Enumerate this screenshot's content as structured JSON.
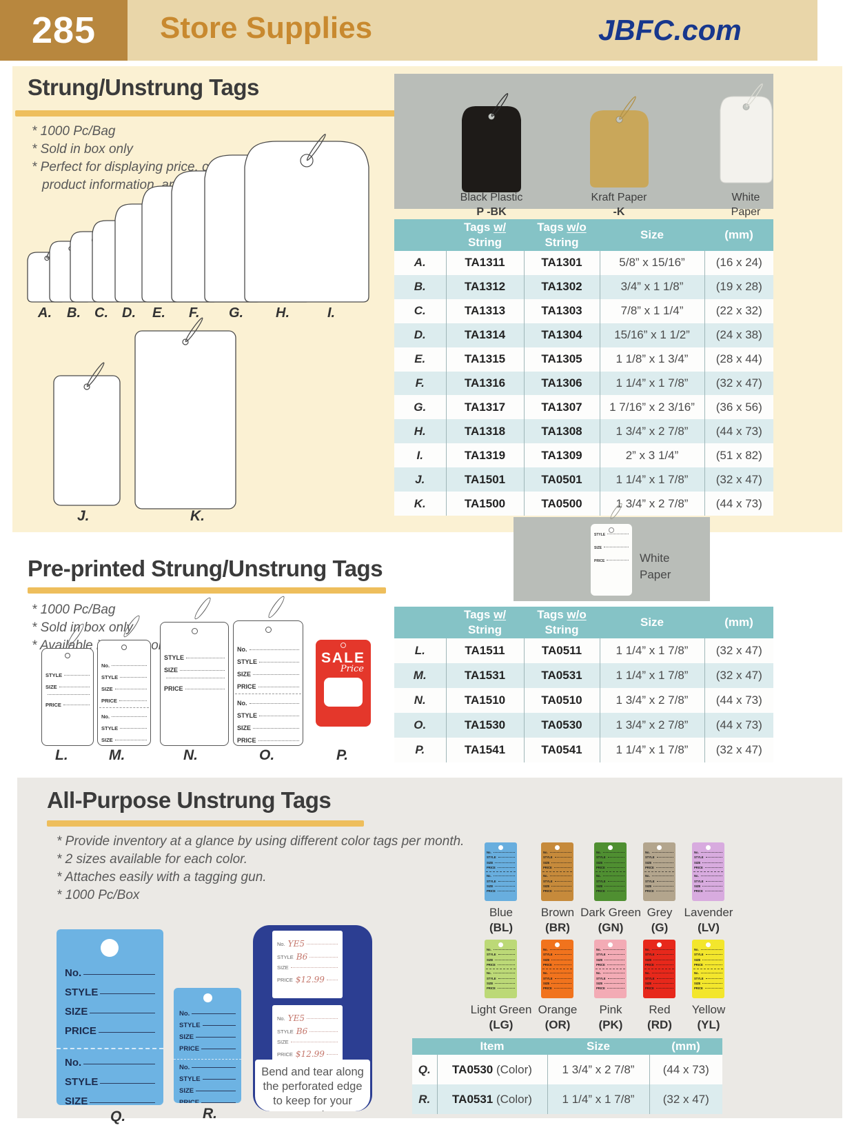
{
  "header": {
    "page_number": "285",
    "title": "Store Supplies",
    "website": "JBFC.com"
  },
  "strung": {
    "title": "Strung/Unstrung Tags",
    "bullets": [
      "* 1000 Pc/Bag",
      "* Sold in box only",
      "* Perfect for displaying price, codes, product information, and more."
    ],
    "fan_letters": [
      "A.",
      "B.",
      "C.",
      "D.",
      "E.",
      "F.",
      "G.",
      "H.",
      "I."
    ],
    "tag_j_letter": "J.",
    "tag_k_letter": "K.",
    "photo_tags": [
      {
        "line1": "Black Plastic",
        "line2": "P -BK",
        "code_bold": true,
        "color": "#1e1b18",
        "string_color": "#2b2b2b"
      },
      {
        "line1": "Kraft Paper",
        "line2": "-K",
        "code_bold": true,
        "color": "#c9a75a",
        "string_color": "#b19148"
      },
      {
        "line1": "White",
        "line2": "Paper",
        "code_bold": false,
        "color": "#f3f2ed",
        "string_color": "#dcdcd4"
      }
    ],
    "table": {
      "headers": [
        [
          "Tags w/",
          "String"
        ],
        [
          "Tags w/o",
          "String"
        ],
        [
          "Size"
        ],
        [
          "(mm)"
        ]
      ],
      "rows": [
        [
          "A.",
          "TA1311",
          "TA1301",
          "5/8” x 15/16”",
          "(16 x 24)"
        ],
        [
          "B.",
          "TA1312",
          "TA1302",
          "3/4” x 1 1/8”",
          "(19 x 28)"
        ],
        [
          "C.",
          "TA1313",
          "TA1303",
          "7/8” x 1 1/4”",
          "(22 x 32)"
        ],
        [
          "D.",
          "TA1314",
          "TA1304",
          "15/16” x 1 1/2”",
          "(24 x 38)"
        ],
        [
          "E.",
          "TA1315",
          "TA1305",
          "1 1/8” x 1 3/4”",
          "(28 x 44)"
        ],
        [
          "F.",
          "TA1316",
          "TA1306",
          "1 1/4” x 1 7/8”",
          "(32 x 47)"
        ],
        [
          "G.",
          "TA1317",
          "TA1307",
          "1 7/16” x 2 3/16”",
          "(36 x 56)"
        ],
        [
          "H.",
          "TA1318",
          "TA1308",
          "1 3/4” x 2 7/8”",
          "(44 x 73)"
        ],
        [
          "I.",
          "TA1319",
          "TA1309",
          "2” x 3 1/4”",
          "(51 x 82)"
        ],
        [
          "J.",
          "TA1501",
          "TA0501",
          "1 1/4” x 1 7/8”",
          "(32 x 47)"
        ],
        [
          "K.",
          "TA1500",
          "TA0500",
          "1 3/4” x 2 7/8”",
          "(44 x 73)"
        ]
      ]
    }
  },
  "preprinted": {
    "title": "Pre-printed Strung/Unstrung Tags",
    "bullets": [
      "* 1000 Pc/Bag",
      "* Sold in box only",
      "* Available in white color only"
    ],
    "photo_label_line1": "White",
    "photo_label_line2": "Paper",
    "mini_fields": [
      "STYLE",
      "SIZE",
      "PRICE"
    ],
    "diagrams": [
      {
        "letter": "L.",
        "fields": [
          "STYLE",
          "SIZE",
          "",
          "PRICE"
        ]
      },
      {
        "letter": "M.",
        "fields": [
          "No.",
          "STYLE",
          "SIZE",
          "PRICE"
        ],
        "two_part": true
      },
      {
        "letter": "N.",
        "fields": [
          "STYLE",
          "SIZE",
          "",
          "PRICE"
        ]
      },
      {
        "letter": "O.",
        "fields": [
          "No.",
          "STYLE",
          "SIZE",
          "PRICE"
        ],
        "two_part": true
      },
      {
        "letter": "P.",
        "sale": {
          "line1": "SALE",
          "line2": "Price"
        }
      }
    ],
    "table": {
      "headers": [
        [
          "Tags w/",
          "String"
        ],
        [
          "Tags w/o",
          "String"
        ],
        [
          "Size"
        ],
        [
          "(mm)"
        ]
      ],
      "rows": [
        [
          "L.",
          "TA1511",
          "TA0511",
          "1 1/4” x 1 7/8”",
          "(32 x 47)"
        ],
        [
          "M.",
          "TA1531",
          "TA0531",
          "1 1/4” x 1 7/8”",
          "(32 x 47)"
        ],
        [
          "N.",
          "TA1510",
          "TA0510",
          "1 3/4” x 2 7/8”",
          "(44 x 73)"
        ],
        [
          "O.",
          "TA1530",
          "TA0530",
          "1 3/4” x 2 7/8”",
          "(44 x 73)"
        ],
        [
          "P.",
          "TA1541",
          "TA0541",
          "1 1/4” x 1 7/8”",
          "(32 x 47)"
        ]
      ]
    }
  },
  "allpurpose": {
    "title": "All-Purpose Unstrung Tags",
    "bullets": [
      "* Provide inventory at a glance by using different color tags per month.",
      "* 2 sizes available for each color.",
      "* Attaches easily with a tagging gun.",
      "* 1000 Pc/Box"
    ],
    "tag_fields": [
      "No.",
      "STYLE",
      "SIZE",
      "PRICE"
    ],
    "colors": [
      {
        "name": "Blue",
        "code": "(BL)",
        "hex": "#68aede"
      },
      {
        "name": "Brown",
        "code": "(BR)",
        "hex": "#c68a3b"
      },
      {
        "name": "Dark Green",
        "code": "(GN)",
        "hex": "#4f8f31"
      },
      {
        "name": "Grey",
        "code": "(G)",
        "hex": "#b3a58d"
      },
      {
        "name": "Lavender",
        "code": "(LV)",
        "hex": "#d8abdf"
      },
      {
        "name": "Light Green",
        "code": "(LG)",
        "hex": "#bcd977"
      },
      {
        "name": "Orange",
        "code": "(OR)",
        "hex": "#f1731d"
      },
      {
        "name": "Pink",
        "code": "(PK)",
        "hex": "#f3abb5"
      },
      {
        "name": "Red",
        "code": "(RD)",
        "hex": "#e7281b"
      },
      {
        "name": "Yellow",
        "code": "(YL)",
        "hex": "#f3e62c"
      }
    ],
    "tag_q_letter": "Q.",
    "tag_r_letter": "R.",
    "demo": {
      "fields": [
        "No.",
        "STYLE",
        "SIZE",
        "PRICE"
      ],
      "values": {
        "No.": "YE5",
        "STYLE": "B6",
        "SIZE": "",
        "PRICE": "$12.99"
      },
      "caption": "Bend and tear along the perforated edge to keep for your records."
    },
    "table": {
      "headers": [
        [
          "Item"
        ],
        [
          "Size"
        ],
        [
          "(mm)"
        ]
      ],
      "rows": [
        [
          "Q.",
          "TA0530 (Color)",
          "1 3/4” x 2 7/8”",
          "(44 x 73)"
        ],
        [
          "R.",
          "TA0531 (Color)",
          "1 1/4” x 1 7/8”",
          "(32 x 47)"
        ]
      ]
    }
  }
}
